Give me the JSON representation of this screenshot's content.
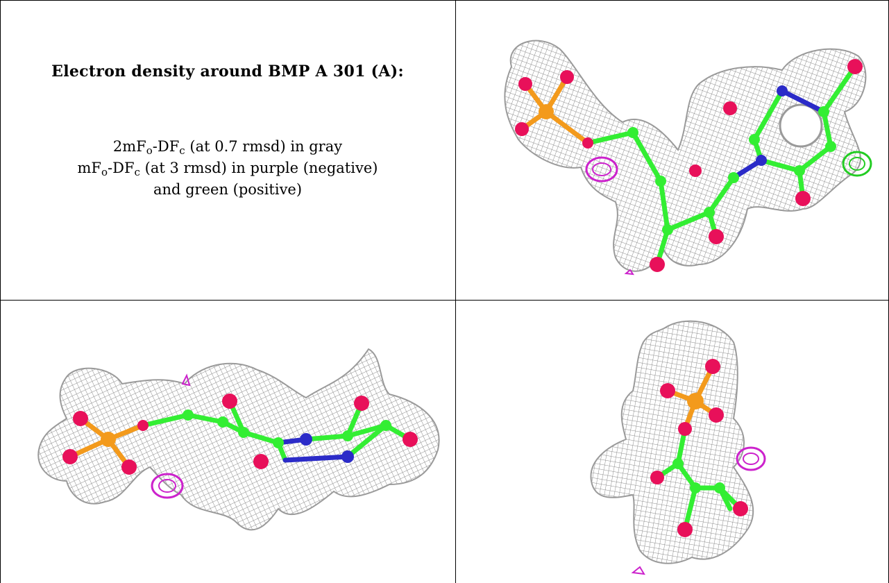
{
  "caption": {
    "title": "Electron density around BMP A 301 (A):",
    "line1": {
      "pre": "2mF",
      "sub1": "o",
      "mid": "-DF",
      "sub2": "c",
      "post": " (at 0.7 rmsd) in gray"
    },
    "line2": {
      "pre": "mF",
      "sub1": "o",
      "mid": "-DF",
      "sub2": "c",
      "post": " (at 3 rmsd) in purple (negative)"
    },
    "line3": "and green (positive)"
  },
  "colors": {
    "mesh_gray": "#9a9a9a",
    "carbon_green": "#33ee33",
    "oxygen_red": "#e8105a",
    "nitrogen_blue": "#2b2bc8",
    "phosphorus_orange": "#f39a1c",
    "negative_density_purple": "#cc22cc",
    "positive_density_green": "#22cc22"
  },
  "panels": [
    {
      "name": "view-top-right"
    },
    {
      "name": "view-bottom-left"
    },
    {
      "name": "view-bottom-right"
    }
  ]
}
